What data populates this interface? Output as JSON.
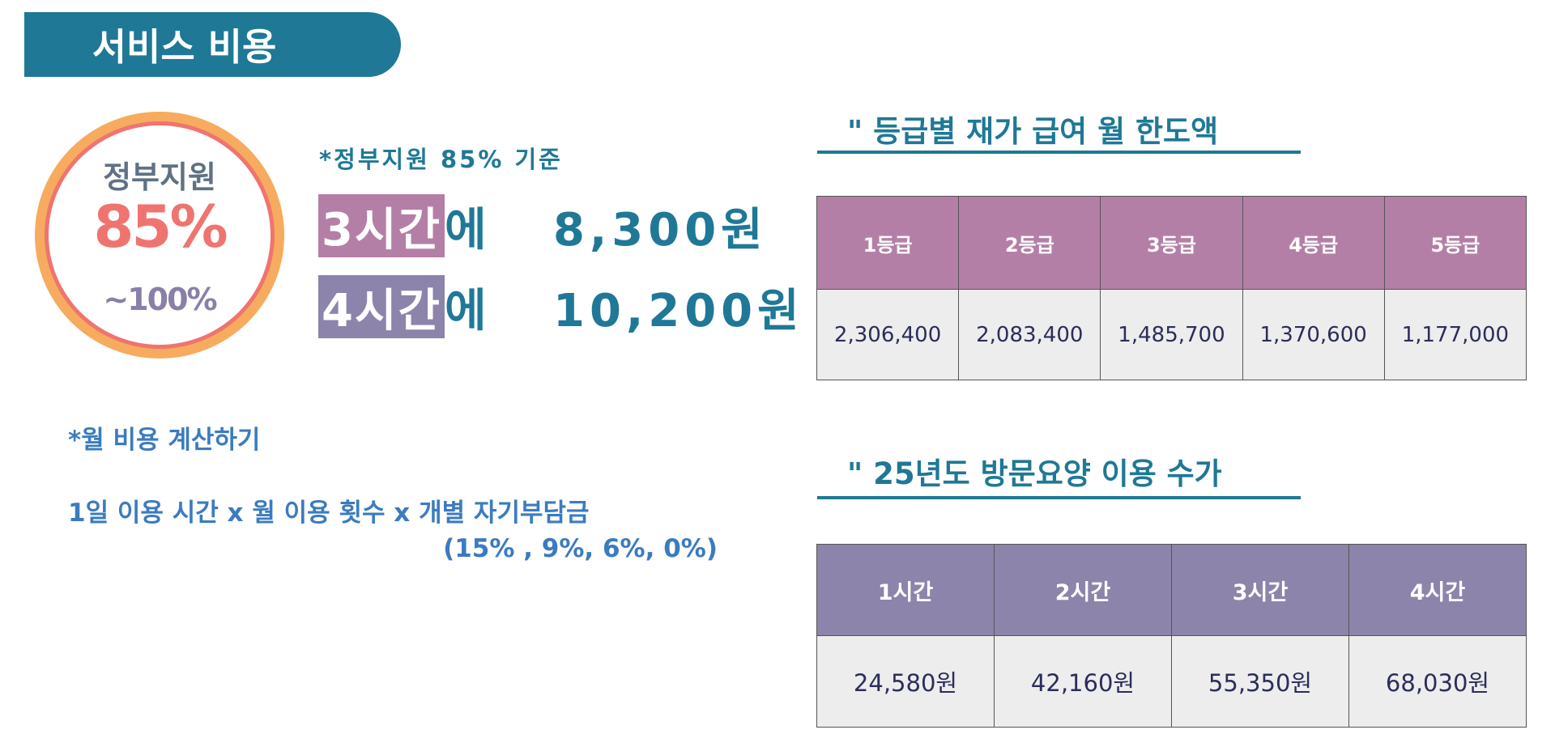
{
  "title": "서비스 비용",
  "support_circle": {
    "label": "정부지원",
    "percent": "85%",
    "max": "~100%"
  },
  "basis_note": "*정부지원 85% 기준",
  "rates": [
    {
      "hours": "3시간",
      "suffix": "에   8,300원"
    },
    {
      "hours": "4시간",
      "suffix": "에   10,200원"
    }
  ],
  "calc": {
    "title": "*월 비용 계산하기",
    "formula": "1일 이용 시간 x 월 이용 횟수 x 개별 자기부담금",
    "rates": "(15% , 9%, 6%, 0%)"
  },
  "grade_section": {
    "heading": "\" 등급별 재가 급여 월 한도액",
    "headers": [
      "1등급",
      "2등급",
      "3등급",
      "4등급",
      "5등급"
    ],
    "values": [
      "2,306,400",
      "2,083,400",
      "1,485,700",
      "1,370,600",
      "1,177,000"
    ]
  },
  "fee_section": {
    "heading": "\" 25년도 방문요양 이용 수가",
    "headers": [
      "1시간",
      "2시간",
      "3시간",
      "4시간"
    ],
    "values": [
      "24,580원",
      "42,160원",
      "55,350원",
      "68,030원"
    ]
  },
  "colors": {
    "teal": "#1f7896",
    "pink": "#b47fa6",
    "purple": "#8c84aa",
    "orange": "#f6ab5e",
    "coral": "#ef7470"
  }
}
